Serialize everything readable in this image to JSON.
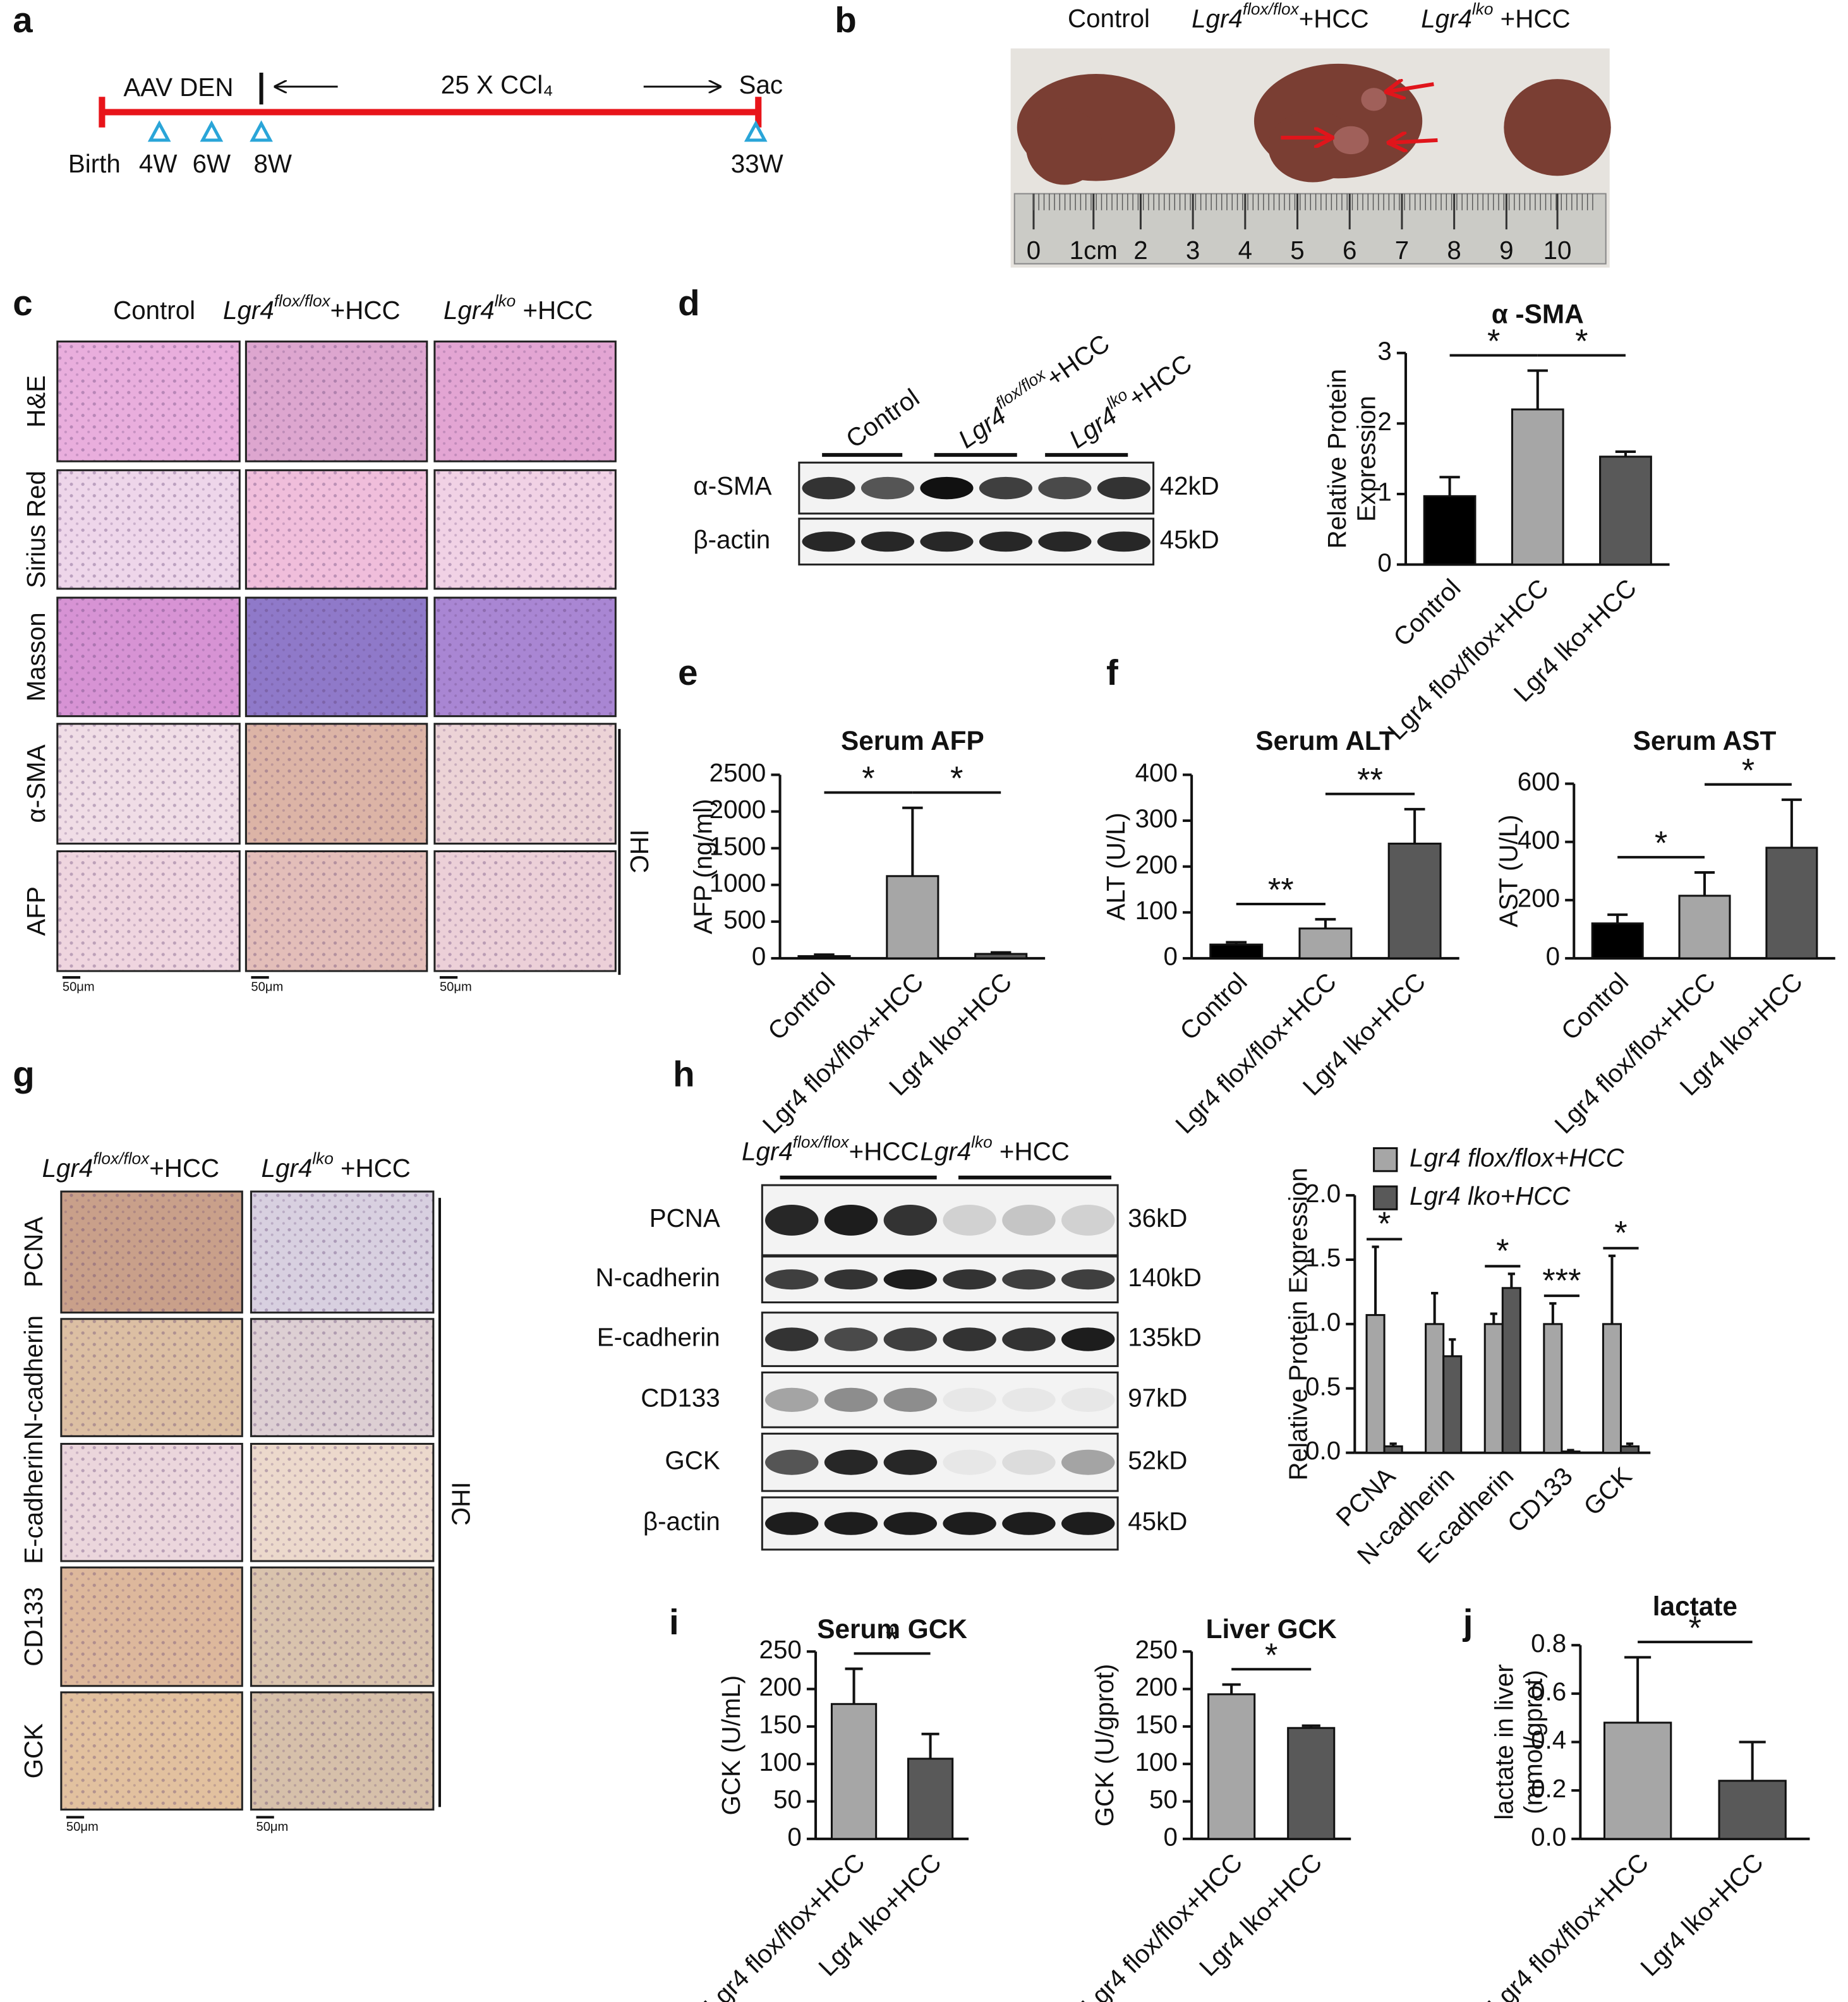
{
  "panel_labels": [
    "a",
    "b",
    "c",
    "d",
    "e",
    "f",
    "g",
    "h",
    "i",
    "j"
  ],
  "a": {
    "start": "Birth",
    "pre": "AAV DEN",
    "treatment": "25 X CCl₄",
    "end": "Sac",
    "timepoints": [
      "4W",
      "6W",
      "8W",
      "33W"
    ]
  },
  "b": {
    "groups": [
      "Control",
      {
        "gene": "Lgr4",
        "genotype": "flox/flox",
        "suffix": "+HCC"
      },
      {
        "gene": "Lgr4",
        "genotype": "lko",
        "suffix": " +HCC"
      }
    ],
    "ruler": [
      "0",
      "1cm",
      "2",
      "3",
      "4",
      "5",
      "6",
      "7",
      "8",
      "9",
      "10"
    ]
  },
  "c": {
    "groups": [
      "Control",
      {
        "gene": "Lgr4",
        "genotype": "flox/flox",
        "suffix": "+HCC"
      },
      {
        "gene": "Lgr4",
        "genotype": "lko",
        "suffix": " +HCC"
      }
    ],
    "rows": [
      "H&E",
      "Sirius Red",
      "Masson",
      "α-SMA",
      "AFP"
    ],
    "method": "IHC",
    "scale_bars": [
      "50μm",
      "50μm",
      "50μm"
    ]
  },
  "d": {
    "groups": [
      "Control",
      {
        "gene": "Lgr4",
        "genotype": "flox/flox",
        "suffix": "+HCC"
      },
      {
        "gene": "Lgr4",
        "genotype": "lko",
        "suffix": "+HCC"
      }
    ],
    "rows": [
      {
        "name": "α-SMA",
        "size": "42kD"
      },
      {
        "name": "β-actin",
        "size": "45kD"
      }
    ]
  },
  "g": {
    "groups": [
      {
        "gene": "Lgr4",
        "genotype": "flox/flox",
        "suffix": "+HCC"
      },
      {
        "gene": "Lgr4",
        "genotype": "lko",
        "suffix": " +HCC"
      }
    ],
    "rows": [
      "PCNA",
      "N-cadherin",
      "E-cadherin",
      "CD133",
      "GCK"
    ],
    "method": "IHC",
    "scale_bars": [
      "50μm",
      "50μm"
    ]
  },
  "h": {
    "groups": [
      {
        "gene": "Lgr4",
        "genotype": "flox/flox",
        "suffix": "+HCC"
      },
      {
        "gene": "Lgr4",
        "genotype": "lko",
        "suffix": " +HCC"
      }
    ],
    "rows": [
      {
        "name": "PCNA",
        "size": "36kD"
      },
      {
        "name": "N-cadherin",
        "size": "140kD"
      },
      {
        "name": "E-cadherin",
        "size": "135kD"
      },
      {
        "name": "CD133",
        "size": "97kD"
      },
      {
        "name": "GCK",
        "size": "52kD"
      },
      {
        "name": "β-actin",
        "size": "45kD"
      }
    ]
  },
  "chart_data": [
    {
      "type": "bar",
      "title": "α -SMA",
      "y_label": [
        "Relative Protein",
        "Expression"
      ],
      "categories": [
        "Control",
        "Lgr4 flox/flox+HCC",
        "Lgr4 lko+HCC"
      ],
      "values": [
        0.97,
        2.2,
        1.53
      ],
      "errors": [
        0.27,
        0.55,
        0.07
      ],
      "colors": [
        "#000000",
        "#a6a6a6",
        "#595959"
      ],
      "ylim": [
        0,
        3
      ],
      "yticks": [
        0,
        1,
        2,
        3
      ],
      "significance": [
        {
          "label": "*",
          "between": [
            0,
            1
          ]
        },
        {
          "label": "*",
          "between": [
            1,
            2
          ]
        }
      ]
    },
    {
      "type": "bar",
      "title": "Serum AFP",
      "y_label": [
        "AFP (ng/ml)"
      ],
      "categories": [
        "Control",
        "Lgr4 flox/flox+HCC",
        "Lgr4 lko+HCC"
      ],
      "values": [
        30,
        1120,
        60
      ],
      "errors": [
        20,
        930,
        20
      ],
      "colors": [
        "#000000",
        "#a6a6a6",
        "#595959"
      ],
      "ylim": [
        0,
        2500
      ],
      "yticks": [
        0,
        500,
        1000,
        1500,
        2000,
        2500
      ],
      "significance": [
        {
          "label": "*",
          "between": [
            0,
            1
          ]
        },
        {
          "label": "*",
          "between": [
            1,
            2
          ]
        }
      ]
    },
    {
      "type": "bar",
      "title": "Serum ALT",
      "y_label": [
        "ALT (U/L)"
      ],
      "categories": [
        "Control",
        "Lgr4 flox/flox+HCC",
        "Lgr4 lko+HCC"
      ],
      "values": [
        30,
        65,
        250
      ],
      "errors": [
        5,
        20,
        75
      ],
      "colors": [
        "#000000",
        "#a6a6a6",
        "#595959"
      ],
      "ylim": [
        0,
        400
      ],
      "yticks": [
        0,
        100,
        200,
        300,
        400
      ],
      "significance": [
        {
          "label": "**",
          "between": [
            0,
            1
          ]
        },
        {
          "label": "**",
          "between": [
            1,
            2
          ]
        }
      ]
    },
    {
      "type": "bar",
      "title": "Serum AST",
      "y_label": [
        "AST (U/L)"
      ],
      "categories": [
        "Control",
        "Lgr4 flox/flox+HCC",
        "Lgr4 lko+HCC"
      ],
      "values": [
        120,
        215,
        380
      ],
      "errors": [
        30,
        80,
        165
      ],
      "colors": [
        "#000000",
        "#a6a6a6",
        "#595959"
      ],
      "ylim": [
        0,
        600
      ],
      "yticks": [
        0,
        200,
        400,
        600
      ],
      "significance": [
        {
          "label": "*",
          "between": [
            0,
            1
          ]
        },
        {
          "label": "*",
          "between": [
            1,
            2
          ]
        }
      ]
    },
    {
      "type": "grouped_bar",
      "y_label": [
        "Relative Protein Expression"
      ],
      "categories": [
        "PCNA",
        "N-cadherin",
        "E-cadherin",
        "CD133",
        "GCK"
      ],
      "series": [
        {
          "name": "Lgr4 flox/flox+HCC",
          "color": "#a6a6a6",
          "values": [
            1.07,
            1,
            1,
            1,
            1
          ],
          "errors": [
            0.53,
            0.24,
            0.08,
            0.16,
            0.53
          ]
        },
        {
          "name": "Lgr4 lko+HCC",
          "color": "#595959",
          "values": [
            0.05,
            0.75,
            1.28,
            0.01,
            0.05
          ],
          "errors": [
            0.02,
            0.13,
            0.11,
            0.01,
            0.02
          ]
        }
      ],
      "ylim": [
        0,
        2
      ],
      "yticks": [
        {
          "value": 0,
          "label": "0.0"
        },
        0.5,
        {
          "value": 1,
          "label": "1.0"
        },
        1.5,
        {
          "value": 2,
          "label": "2.0"
        }
      ],
      "legend": "upper left",
      "significance": [
        {
          "label": "*",
          "category": 0
        },
        {
          "label": "*",
          "category": 2
        },
        {
          "label": "***",
          "category": 3
        },
        {
          "label": "*",
          "category": 4
        }
      ]
    },
    {
      "type": "bar",
      "title": "Serum GCK",
      "y_label": [
        "GCK (U/mL)"
      ],
      "categories": [
        "Lgr4 flox/flox+HCC",
        "Lgr4 lko+HCC"
      ],
      "values": [
        180,
        107
      ],
      "errors": [
        47,
        33
      ],
      "colors": [
        "#a6a6a6",
        "#595959"
      ],
      "ylim": [
        0,
        250
      ],
      "yticks": [
        0,
        50,
        100,
        150,
        200,
        250
      ],
      "significance": [
        {
          "label": "*",
          "between": [
            0,
            1
          ]
        }
      ]
    },
    {
      "type": "bar",
      "title": "Liver GCK",
      "y_label": [
        "GCK (U/gprot)"
      ],
      "categories": [
        "Lgr4 flox/flox+HCC",
        "Lgr4 lko+HCC"
      ],
      "values": [
        193,
        148
      ],
      "errors": [
        13,
        3
      ],
      "colors": [
        "#a6a6a6",
        "#595959"
      ],
      "ylim": [
        0,
        250
      ],
      "yticks": [
        0,
        50,
        100,
        150,
        200,
        250
      ],
      "significance": [
        {
          "label": "*",
          "between": [
            0,
            1
          ]
        }
      ]
    },
    {
      "type": "bar",
      "title": "lactate",
      "y_label": [
        "lactate in liver",
        "(mmol/gprot)"
      ],
      "categories": [
        "Lgr4 flox/flox+HCC",
        "Lgr4 lko+HCC"
      ],
      "values": [
        0.48,
        0.24
      ],
      "errors": [
        0.27,
        0.16
      ],
      "colors": [
        "#a6a6a6",
        "#595959"
      ],
      "ylim": [
        0,
        0.8
      ],
      "yticks": [
        {
          "value": 0,
          "label": "0.0"
        },
        0.2,
        0.4,
        0.6,
        0.8
      ],
      "significance": [
        {
          "label": "*",
          "between": [
            0,
            1
          ]
        }
      ]
    }
  ]
}
